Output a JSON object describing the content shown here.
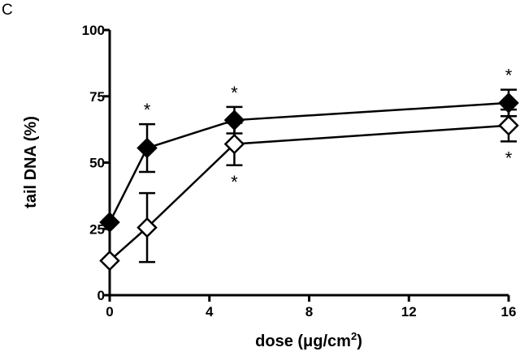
{
  "panel_label": "C",
  "chart_data": {
    "type": "line",
    "xlabel": "dose (μg/cm2)",
    "xlabel_parts": {
      "main": "dose (μg/cm",
      "sup": "2",
      "close": ")"
    },
    "ylabel": "tail DNA (%)",
    "xlim": [
      0,
      16
    ],
    "ylim": [
      0,
      100
    ],
    "xticks": [
      0,
      4,
      8,
      12,
      16
    ],
    "yticks": [
      0,
      25,
      50,
      75,
      100
    ],
    "grid": false,
    "legend": "none",
    "series": [
      {
        "marker": "filled-diamond",
        "x": [
          0,
          1.5,
          5,
          16
        ],
        "y": [
          27.5,
          55.5,
          66,
          72.5
        ],
        "err": [
          0,
          9,
          5,
          5
        ],
        "significance": [
          "",
          "*",
          "*",
          "*"
        ],
        "significance_side": "above"
      },
      {
        "marker": "open-diamond",
        "x": [
          0,
          1.5,
          5,
          16
        ],
        "y": [
          13,
          25.5,
          57,
          64
        ],
        "err": [
          0,
          13,
          8,
          6
        ],
        "significance": [
          "",
          "",
          "*",
          "*"
        ],
        "significance_side": "below"
      }
    ]
  }
}
